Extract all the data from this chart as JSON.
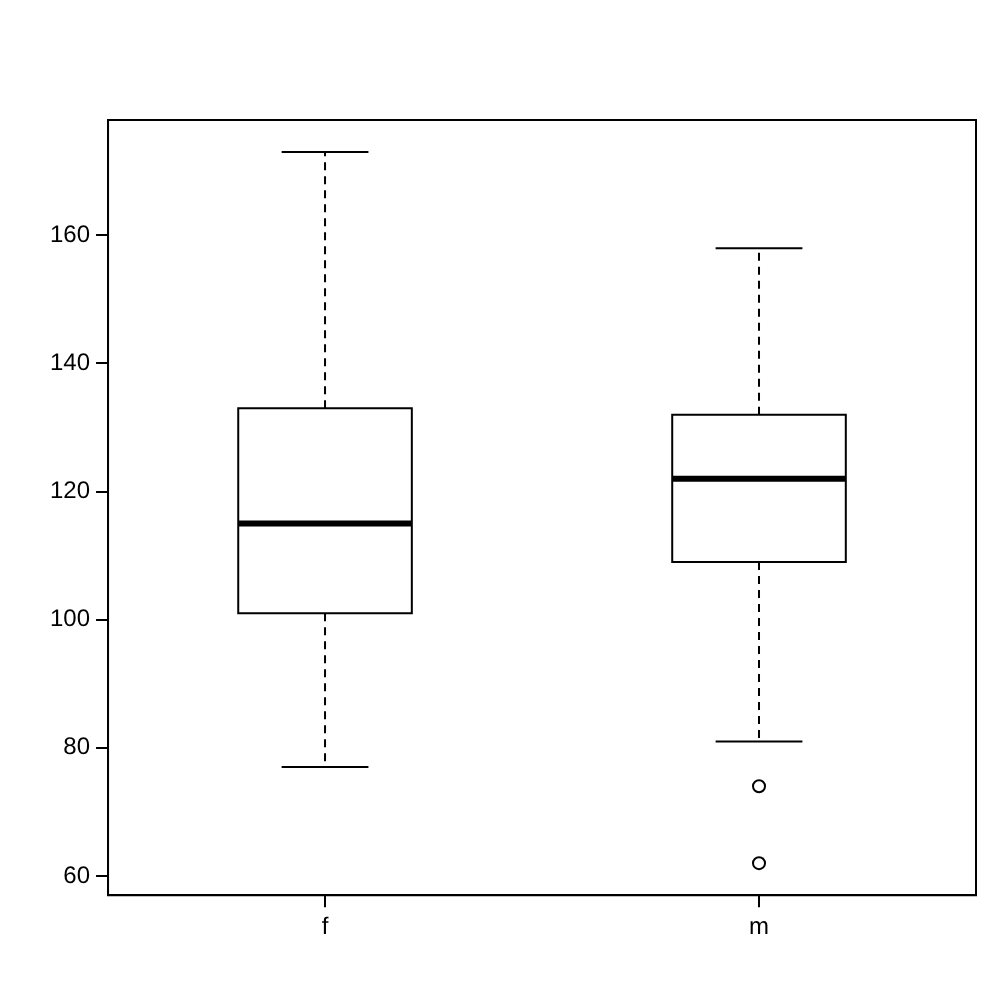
{
  "chart_data": {
    "type": "box",
    "categories": [
      "f",
      "m"
    ],
    "boxes": [
      {
        "low": 77,
        "q1": 101,
        "median": 115,
        "q3": 133,
        "high": 173
      },
      {
        "low": 81,
        "q1": 109,
        "median": 122,
        "q3": 132,
        "high": 158,
        "outliers": [
          74,
          62
        ]
      }
    ],
    "ylim": [
      57,
      178
    ],
    "yticks": [
      60,
      80,
      100,
      120,
      140,
      160
    ],
    "grid": false,
    "legend": false
  }
}
